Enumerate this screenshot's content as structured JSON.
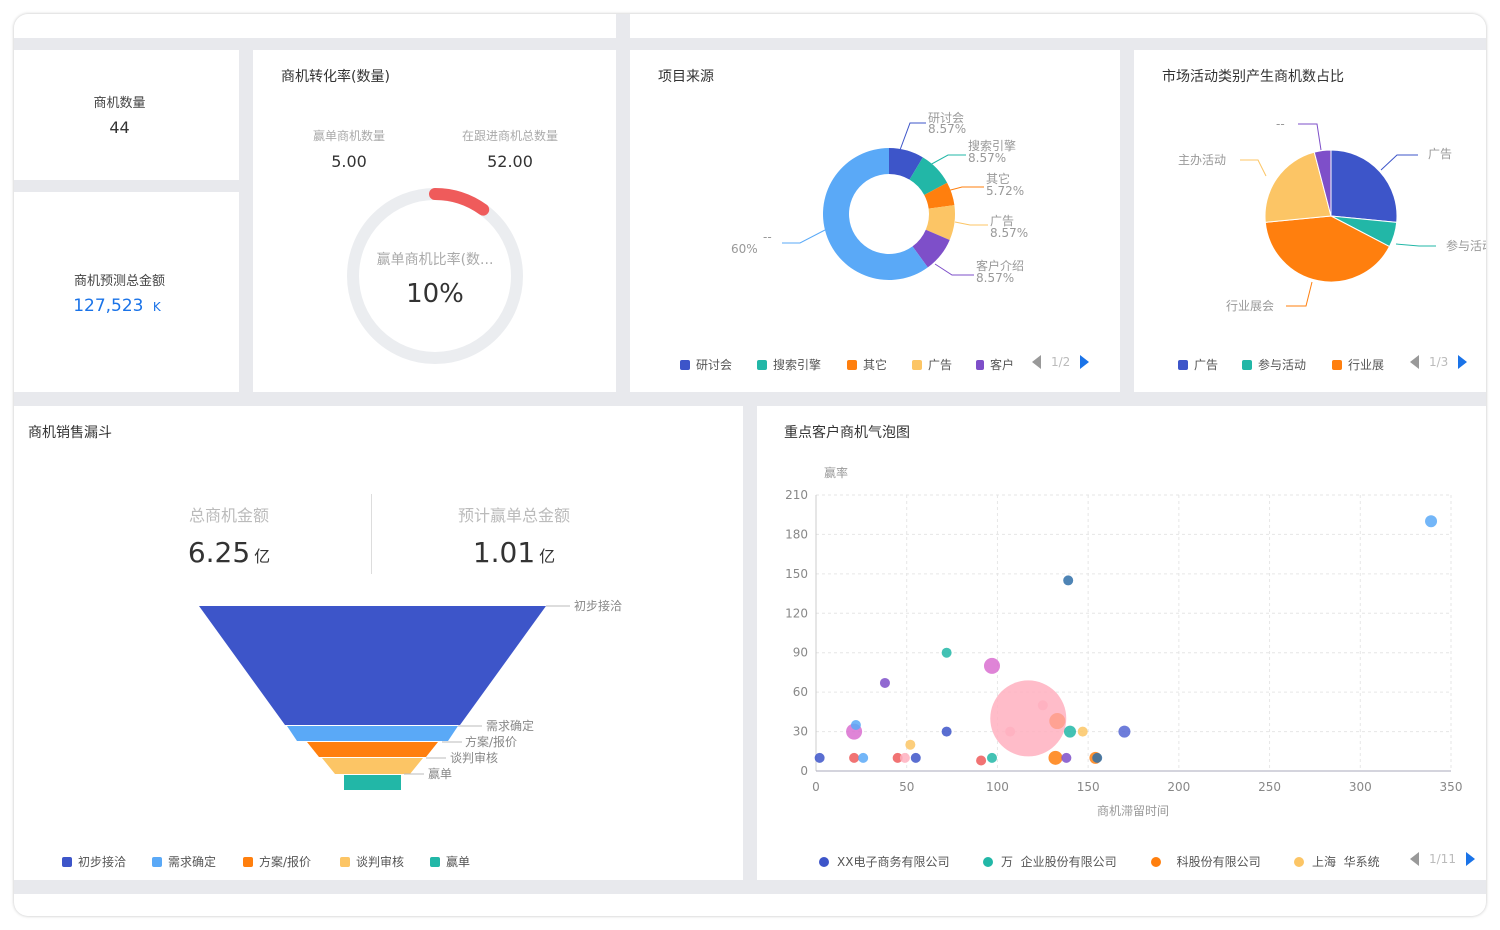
{
  "kpi_count": {
    "label": "商机数量",
    "value": "44"
  },
  "kpi_amount": {
    "label": "商机预测总金额",
    "value": "127,523",
    "unit": "K"
  },
  "conversion": {
    "title": "商机转化率(数量)",
    "won_label": "赢单商机数量",
    "won_value": "5.00",
    "total_label": "在跟进商机总数量",
    "total_value": "52.00",
    "gauge_label": "赢单商机比率(数...",
    "gauge_value": "10%",
    "gauge_fraction": 0.1,
    "colors": {
      "track": "#ebedf0",
      "fill": "#ef5b5b"
    }
  },
  "source": {
    "title": "项目来源",
    "labels": [
      {
        "name": "研讨会",
        "pct": "8.57%"
      },
      {
        "name": "搜索引擎",
        "pct": "8.57%"
      },
      {
        "name": "其它",
        "pct": "5.72%"
      },
      {
        "name": "广告",
        "pct": "8.57%"
      },
      {
        "name": "客户介绍",
        "pct": "8.57%"
      },
      {
        "name": "--",
        "pct": "60%"
      }
    ],
    "legend": [
      "研讨会",
      "搜索引擎",
      "其它",
      "广告",
      "客户"
    ],
    "pager": "1/2"
  },
  "market": {
    "title": "市场活动类别产生商机数占比",
    "labels": [
      "广告",
      "参与活动",
      "行业展会",
      "主办活动",
      "--"
    ],
    "legend": [
      "广告",
      "参与活动",
      "行业展"
    ],
    "pager": "1/3"
  },
  "funnel": {
    "title": "商机销售漏斗",
    "total_label": "总商机金额",
    "total_value": "6.25",
    "total_unit": "亿",
    "win_label": "预计赢单总金额",
    "win_value": "1.01",
    "win_unit": "亿",
    "stages": [
      "初步接洽",
      "需求确定",
      "方案/报价",
      "谈判审核",
      "赢单"
    ],
    "legend": [
      "初步接洽",
      "需求确定",
      "方案/报价",
      "谈判审核",
      "赢单"
    ]
  },
  "bubble": {
    "title": "重点客户商机气泡图",
    "legend": [
      "XX电子商务有限公司",
      "万  企业股份有限公司",
      "  科股份有限公司",
      "上海  华系统"
    ],
    "pager": "1/11"
  },
  "colors": {
    "blue": "#3d55c9",
    "lightblue": "#5aa9f7",
    "teal": "#22b7a7",
    "orange": "#ff7f0e",
    "yellow": "#fcc565",
    "purple": "#7e4fc9",
    "pink": "#ffb0c0",
    "accent": "#1a73e8"
  },
  "chart_data": [
    {
      "type": "pie",
      "title": "项目来源",
      "categories": [
        "研讨会",
        "搜索引擎",
        "其它",
        "广告",
        "客户介绍",
        "--"
      ],
      "values": [
        8.57,
        8.57,
        5.72,
        8.57,
        8.57,
        60
      ]
    },
    {
      "type": "pie",
      "title": "市场活动类别产生商机数占比",
      "categories": [
        "广告",
        "参与活动",
        "行业展会",
        "主办活动",
        "--"
      ],
      "values": [
        26,
        6,
        40,
        22,
        4
      ]
    },
    {
      "type": "bar",
      "title": "商机销售漏斗",
      "categories": [
        "初步接洽",
        "需求确定",
        "方案/报价",
        "谈判审核",
        "赢单"
      ],
      "values": [
        100,
        45,
        38,
        32,
        17
      ]
    },
    {
      "type": "scatter",
      "title": "重点客户商机气泡图",
      "xlabel": "商机滞留时间",
      "ylabel": "赢率",
      "xlim": [
        0,
        350
      ],
      "ylim": [
        0,
        210
      ],
      "xticks": [
        0,
        50,
        100,
        150,
        200,
        250,
        300,
        350
      ],
      "yticks": [
        0,
        30,
        60,
        90,
        120,
        150,
        180,
        210
      ],
      "points": [
        {
          "x": 2,
          "y": 10,
          "r": 5,
          "c": "#3d55c9"
        },
        {
          "x": 21,
          "y": 30,
          "r": 8,
          "c": "#d96fd0"
        },
        {
          "x": 22,
          "y": 35,
          "r": 5,
          "c": "#5aa9f7"
        },
        {
          "x": 21,
          "y": 10,
          "r": 5,
          "c": "#ef5b5b"
        },
        {
          "x": 26,
          "y": 10,
          "r": 5,
          "c": "#5aa9f7"
        },
        {
          "x": 38,
          "y": 67,
          "r": 5,
          "c": "#7e4fc9"
        },
        {
          "x": 45,
          "y": 10,
          "r": 5,
          "c": "#ef5b5b"
        },
        {
          "x": 49,
          "y": 10,
          "r": 5,
          "c": "#ffb0c0"
        },
        {
          "x": 52,
          "y": 20,
          "r": 5,
          "c": "#fcc565"
        },
        {
          "x": 55,
          "y": 10,
          "r": 5,
          "c": "#3d55c9"
        },
        {
          "x": 72,
          "y": 90,
          "r": 5,
          "c": "#22b7a7"
        },
        {
          "x": 72,
          "y": 30,
          "r": 5,
          "c": "#3d55c9"
        },
        {
          "x": 91,
          "y": 8,
          "r": 5,
          "c": "#ef5b5b"
        },
        {
          "x": 97,
          "y": 10,
          "r": 5,
          "c": "#22b7a7"
        },
        {
          "x": 97,
          "y": 80,
          "r": 8,
          "c": "#d96fd0"
        },
        {
          "x": 107,
          "y": 30,
          "r": 5,
          "c": "#ffb0c0"
        },
        {
          "x": 117,
          "y": 40,
          "r": 38,
          "c": "#ffb0c0"
        },
        {
          "x": 125,
          "y": 50,
          "r": 5,
          "c": "#ffb0c0"
        },
        {
          "x": 133,
          "y": 38,
          "r": 8,
          "c": "#ff9e8a"
        },
        {
          "x": 132,
          "y": 10,
          "r": 7,
          "c": "#ff7f0e"
        },
        {
          "x": 139,
          "y": 145,
          "r": 5,
          "c": "#2f6fa8"
        },
        {
          "x": 140,
          "y": 30,
          "r": 6,
          "c": "#22b7a7"
        },
        {
          "x": 138,
          "y": 10,
          "r": 5,
          "c": "#7e4fc9"
        },
        {
          "x": 147,
          "y": 30,
          "r": 5,
          "c": "#fcc565"
        },
        {
          "x": 154,
          "y": 10,
          "r": 6,
          "c": "#ff7f0e"
        },
        {
          "x": 155,
          "y": 10,
          "r": 5,
          "c": "#2f6fa8"
        },
        {
          "x": 170,
          "y": 30,
          "r": 6,
          "c": "#5566d4"
        },
        {
          "x": 339,
          "y": 190,
          "r": 6,
          "c": "#5aa9f7"
        }
      ]
    }
  ]
}
